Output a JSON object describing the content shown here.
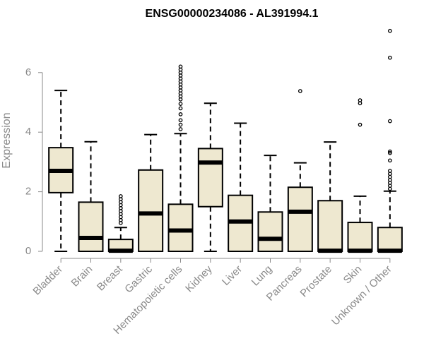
{
  "chart_data": {
    "type": "boxplot",
    "title": "ENSG00000234086 - AL391994.1",
    "xlabel": "",
    "ylabel": "Expression",
    "ylim": [
      0,
      7.5
    ],
    "yticks": [
      0,
      2,
      4,
      6
    ],
    "box_color": "#EEE8D0",
    "categories": [
      "Bladder",
      "Brain",
      "Breast",
      "Gastric",
      "Hematopoietic cells",
      "Kidney",
      "Liver",
      "Lung",
      "Pancreas",
      "Prostate",
      "Skin",
      "Unknown / Other"
    ],
    "series": [
      {
        "name": "Bladder",
        "min": 0,
        "q1": 1.97,
        "median": 2.7,
        "q3": 3.48,
        "max": 5.4,
        "outliers": []
      },
      {
        "name": "Brain",
        "min": 0,
        "q1": 0,
        "median": 0.45,
        "q3": 1.65,
        "max": 3.68,
        "outliers": []
      },
      {
        "name": "Breast",
        "min": 0,
        "q1": 0,
        "median": 0.02,
        "q3": 0.4,
        "max": 0.8,
        "outliers": [
          0.95,
          1.05,
          1.15,
          1.25,
          1.35,
          1.45,
          1.55,
          1.65,
          1.75,
          1.85
        ]
      },
      {
        "name": "Gastric",
        "min": 0,
        "q1": 0,
        "median": 1.27,
        "q3": 2.73,
        "max": 3.92,
        "outliers": []
      },
      {
        "name": "Hematopoietic cells",
        "min": 0,
        "q1": 0,
        "median": 0.7,
        "q3": 1.58,
        "max": 3.95,
        "outliers": [
          4.1,
          4.25,
          4.4,
          4.6,
          4.8,
          4.95,
          5.1,
          5.2,
          5.3,
          5.4,
          5.5,
          5.6,
          5.7,
          5.8,
          5.9,
          6.0,
          6.1,
          6.2
        ]
      },
      {
        "name": "Kidney",
        "min": 0,
        "q1": 1.5,
        "median": 2.98,
        "q3": 3.45,
        "max": 4.97,
        "outliers": []
      },
      {
        "name": "Liver",
        "min": 0,
        "q1": 0,
        "median": 1.0,
        "q3": 1.88,
        "max": 4.3,
        "outliers": []
      },
      {
        "name": "Lung",
        "min": 0,
        "q1": 0,
        "median": 0.42,
        "q3": 1.32,
        "max": 3.22,
        "outliers": []
      },
      {
        "name": "Pancreas",
        "min": 0,
        "q1": 0,
        "median": 1.33,
        "q3": 2.15,
        "max": 2.97,
        "outliers": [
          5.38
        ]
      },
      {
        "name": "Prostate",
        "min": 0,
        "q1": 0,
        "median": 0.02,
        "q3": 1.7,
        "max": 3.67,
        "outliers": []
      },
      {
        "name": "Skin",
        "min": 0,
        "q1": 0,
        "median": 0.02,
        "q3": 0.97,
        "max": 1.85,
        "outliers": [
          4.25,
          4.97,
          5.07
        ]
      },
      {
        "name": "Unknown / Other",
        "min": 0,
        "q1": 0,
        "median": 0.02,
        "q3": 0.8,
        "max": 2.02,
        "outliers": [
          2.1,
          2.2,
          2.3,
          2.4,
          2.5,
          2.6,
          2.7,
          3.05,
          3.3,
          3.35,
          4.37,
          6.5,
          7.4
        ]
      }
    ]
  }
}
